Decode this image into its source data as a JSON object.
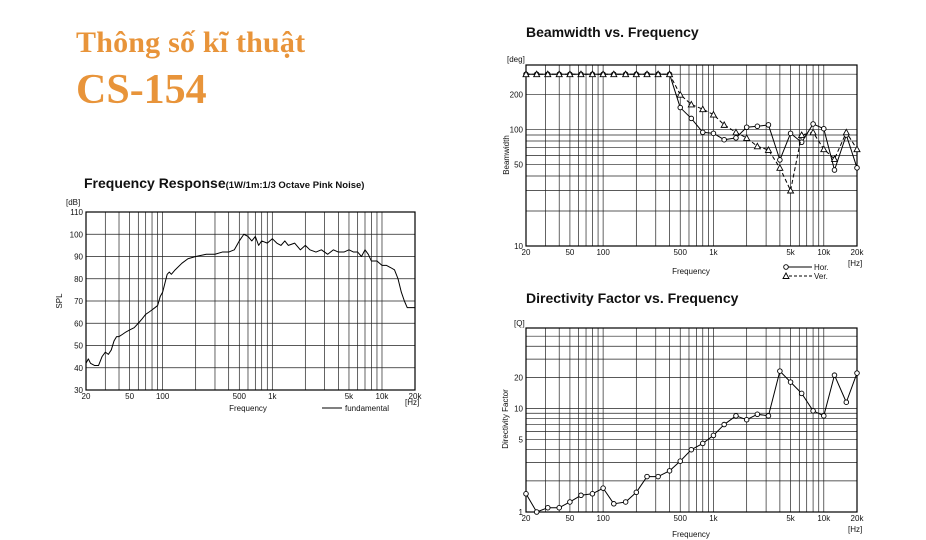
{
  "header": {
    "title": "Thông số kĩ thuật",
    "model": "CS-154"
  },
  "chart_data": [
    {
      "id": "freq",
      "type": "line",
      "title": "Frequency Response",
      "subtitle": "(1W/1m:1/3 Octave Pink Noise)",
      "xlabel": "Frequency",
      "ylabel": "SPL",
      "x_unit": "[Hz]",
      "y_unit": "[dB]",
      "xscale": "log",
      "xlim": [
        20,
        20000
      ],
      "ylim": [
        30,
        110
      ],
      "grid": true,
      "legend": "bottom-right",
      "xticks": [
        {
          "v": 20,
          "label": "20"
        },
        {
          "v": 50,
          "label": "50"
        },
        {
          "v": 100,
          "label": "100"
        },
        {
          "v": 500,
          "label": "500"
        },
        {
          "v": 1000,
          "label": "1k"
        },
        {
          "v": 5000,
          "label": "5k"
        },
        {
          "v": 10000,
          "label": "10k"
        },
        {
          "v": 20000,
          "label": "20k"
        }
      ],
      "yticks": [
        {
          "v": 30,
          "label": "30"
        },
        {
          "v": 40,
          "label": "40"
        },
        {
          "v": 50,
          "label": "50"
        },
        {
          "v": 60,
          "label": "60"
        },
        {
          "v": 70,
          "label": "70"
        },
        {
          "v": 80,
          "label": "80"
        },
        {
          "v": 90,
          "label": "90"
        },
        {
          "v": 100,
          "label": "100"
        },
        {
          "v": 110,
          "label": "110"
        }
      ],
      "series": [
        {
          "name": "fundamental",
          "style": "solid",
          "marker": "none",
          "points": [
            [
              20,
              42
            ],
            [
              21,
              44
            ],
            [
              22,
              42
            ],
            [
              24,
              41
            ],
            [
              26,
              41
            ],
            [
              28,
              45
            ],
            [
              30,
              47
            ],
            [
              32,
              46
            ],
            [
              34,
              48
            ],
            [
              36,
              52
            ],
            [
              38,
              54
            ],
            [
              40,
              54
            ],
            [
              43,
              55
            ],
            [
              46,
              56
            ],
            [
              50,
              57
            ],
            [
              55,
              58
            ],
            [
              60,
              60
            ],
            [
              65,
              62
            ],
            [
              70,
              64
            ],
            [
              75,
              65
            ],
            [
              80,
              66
            ],
            [
              85,
              67
            ],
            [
              90,
              68
            ],
            [
              95,
              72
            ],
            [
              100,
              74
            ],
            [
              110,
              82
            ],
            [
              115,
              83
            ],
            [
              120,
              82
            ],
            [
              130,
              84
            ],
            [
              150,
              87
            ],
            [
              170,
              89
            ],
            [
              200,
              90
            ],
            [
              250,
              91
            ],
            [
              300,
              91
            ],
            [
              350,
              92
            ],
            [
              400,
              92
            ],
            [
              450,
              93
            ],
            [
              500,
              97
            ],
            [
              550,
              100
            ],
            [
              600,
              99
            ],
            [
              650,
              97
            ],
            [
              700,
              99
            ],
            [
              750,
              95
            ],
            [
              800,
              97
            ],
            [
              900,
              96
            ],
            [
              1000,
              98
            ],
            [
              1100,
              96
            ],
            [
              1200,
              95
            ],
            [
              1300,
              97
            ],
            [
              1400,
              95
            ],
            [
              1600,
              96
            ],
            [
              1800,
              93
            ],
            [
              2000,
              95
            ],
            [
              2200,
              93
            ],
            [
              2500,
              92
            ],
            [
              2800,
              93
            ],
            [
              3200,
              91
            ],
            [
              3600,
              93
            ],
            [
              4000,
              92
            ],
            [
              4500,
              92
            ],
            [
              5000,
              93
            ],
            [
              5500,
              92
            ],
            [
              6000,
              92
            ],
            [
              6500,
              90
            ],
            [
              7000,
              93
            ],
            [
              7500,
              91
            ],
            [
              8000,
              88
            ],
            [
              9000,
              88
            ],
            [
              10000,
              86
            ],
            [
              11000,
              86
            ],
            [
              12000,
              85
            ],
            [
              13000,
              84
            ],
            [
              14000,
              80
            ],
            [
              15000,
              74
            ],
            [
              16000,
              70
            ],
            [
              17000,
              67
            ],
            [
              18500,
              67
            ],
            [
              20000,
              67
            ]
          ]
        }
      ]
    },
    {
      "id": "beam",
      "type": "line",
      "title": "Beamwidth vs. Frequency",
      "xlabel": "Frequency",
      "ylabel": "Beamwidth",
      "x_unit": "[Hz]",
      "y_unit": "[deg]",
      "xscale": "log",
      "yscale": "log",
      "xlim": [
        20,
        20000
      ],
      "ylim": [
        10,
        360
      ],
      "grid": true,
      "legend": "bottom-right",
      "xticks": [
        {
          "v": 20,
          "label": "20"
        },
        {
          "v": 50,
          "label": "50"
        },
        {
          "v": 100,
          "label": "100"
        },
        {
          "v": 500,
          "label": "500"
        },
        {
          "v": 1000,
          "label": "1k"
        },
        {
          "v": 5000,
          "label": "5k"
        },
        {
          "v": 10000,
          "label": "10k"
        },
        {
          "v": 20000,
          "label": "20k"
        }
      ],
      "yticks": [
        {
          "v": 10,
          "label": "10"
        },
        {
          "v": 50,
          "label": "50"
        },
        {
          "v": 100,
          "label": "100"
        },
        {
          "v": 200,
          "label": "200"
        }
      ],
      "series": [
        {
          "name": "Hor.",
          "style": "solid",
          "marker": "circle",
          "points": [
            [
              20,
              300
            ],
            [
              25,
              300
            ],
            [
              31.5,
              300
            ],
            [
              40,
              300
            ],
            [
              50,
              300
            ],
            [
              63,
              300
            ],
            [
              80,
              300
            ],
            [
              100,
              300
            ],
            [
              125,
              300
            ],
            [
              160,
              300
            ],
            [
              200,
              300
            ],
            [
              250,
              300
            ],
            [
              315,
              300
            ],
            [
              400,
              300
            ],
            [
              500,
              155
            ],
            [
              630,
              125
            ],
            [
              800,
              95
            ],
            [
              1000,
              93
            ],
            [
              1250,
              82
            ],
            [
              1600,
              85
            ],
            [
              2000,
              105
            ],
            [
              2500,
              107
            ],
            [
              3150,
              110
            ],
            [
              4000,
              55
            ],
            [
              5000,
              93
            ],
            [
              6300,
              78
            ],
            [
              8000,
              112
            ],
            [
              10000,
              102
            ],
            [
              12500,
              45
            ],
            [
              16000,
              90
            ],
            [
              20000,
              47
            ]
          ]
        },
        {
          "name": "Ver.",
          "style": "dashed",
          "marker": "triangle",
          "points": [
            [
              20,
              300
            ],
            [
              25,
              300
            ],
            [
              31.5,
              300
            ],
            [
              40,
              300
            ],
            [
              50,
              300
            ],
            [
              63,
              300
            ],
            [
              80,
              300
            ],
            [
              100,
              300
            ],
            [
              125,
              300
            ],
            [
              160,
              300
            ],
            [
              200,
              300
            ],
            [
              250,
              300
            ],
            [
              315,
              300
            ],
            [
              400,
              300
            ],
            [
              500,
              200
            ],
            [
              630,
              165
            ],
            [
              800,
              150
            ],
            [
              1000,
              135
            ],
            [
              1250,
              110
            ],
            [
              1600,
              95
            ],
            [
              2000,
              85
            ],
            [
              2500,
              72
            ],
            [
              3150,
              67
            ],
            [
              4000,
              47
            ],
            [
              5000,
              30
            ],
            [
              6300,
              90
            ],
            [
              8000,
              95
            ],
            [
              10000,
              68
            ],
            [
              12500,
              56
            ],
            [
              16000,
              95
            ],
            [
              20000,
              68
            ]
          ]
        }
      ]
    },
    {
      "id": "dir",
      "type": "line",
      "title": "Directivity Factor vs. Frequency",
      "xlabel": "Frequency",
      "ylabel": "Directivity Factor",
      "x_unit": "[Hz]",
      "y_unit": "[Q]",
      "xscale": "log",
      "yscale": "log",
      "xlim": [
        20,
        20000
      ],
      "ylim": [
        1,
        60
      ],
      "grid": true,
      "xticks": [
        {
          "v": 20,
          "label": "20"
        },
        {
          "v": 50,
          "label": "50"
        },
        {
          "v": 100,
          "label": "100"
        },
        {
          "v": 500,
          "label": "500"
        },
        {
          "v": 1000,
          "label": "1k"
        },
        {
          "v": 5000,
          "label": "5k"
        },
        {
          "v": 10000,
          "label": "10k"
        },
        {
          "v": 20000,
          "label": "20k"
        }
      ],
      "yticks": [
        {
          "v": 1,
          "label": "1"
        },
        {
          "v": 5,
          "label": "5"
        },
        {
          "v": 10,
          "label": "10"
        },
        {
          "v": 20,
          "label": "20"
        }
      ],
      "series": [
        {
          "name": "",
          "style": "solid",
          "marker": "circle",
          "points": [
            [
              20,
              1.5
            ],
            [
              25,
              1.0
            ],
            [
              31.5,
              1.1
            ],
            [
              40,
              1.1
            ],
            [
              50,
              1.25
            ],
            [
              63,
              1.45
            ],
            [
              80,
              1.5
            ],
            [
              100,
              1.7
            ],
            [
              125,
              1.2
            ],
            [
              160,
              1.25
            ],
            [
              200,
              1.55
            ],
            [
              250,
              2.2
            ],
            [
              315,
              2.2
            ],
            [
              400,
              2.5
            ],
            [
              500,
              3.1
            ],
            [
              630,
              4.0
            ],
            [
              800,
              4.6
            ],
            [
              1000,
              5.5
            ],
            [
              1250,
              7.0
            ],
            [
              1600,
              8.5
            ],
            [
              2000,
              7.8
            ],
            [
              2500,
              8.8
            ],
            [
              3150,
              8.5
            ],
            [
              4000,
              23
            ],
            [
              5000,
              18
            ],
            [
              6300,
              14
            ],
            [
              8000,
              9.5
            ],
            [
              10000,
              8.5
            ],
            [
              12500,
              21
            ],
            [
              16000,
              11.5
            ],
            [
              20000,
              22
            ]
          ]
        }
      ]
    }
  ]
}
